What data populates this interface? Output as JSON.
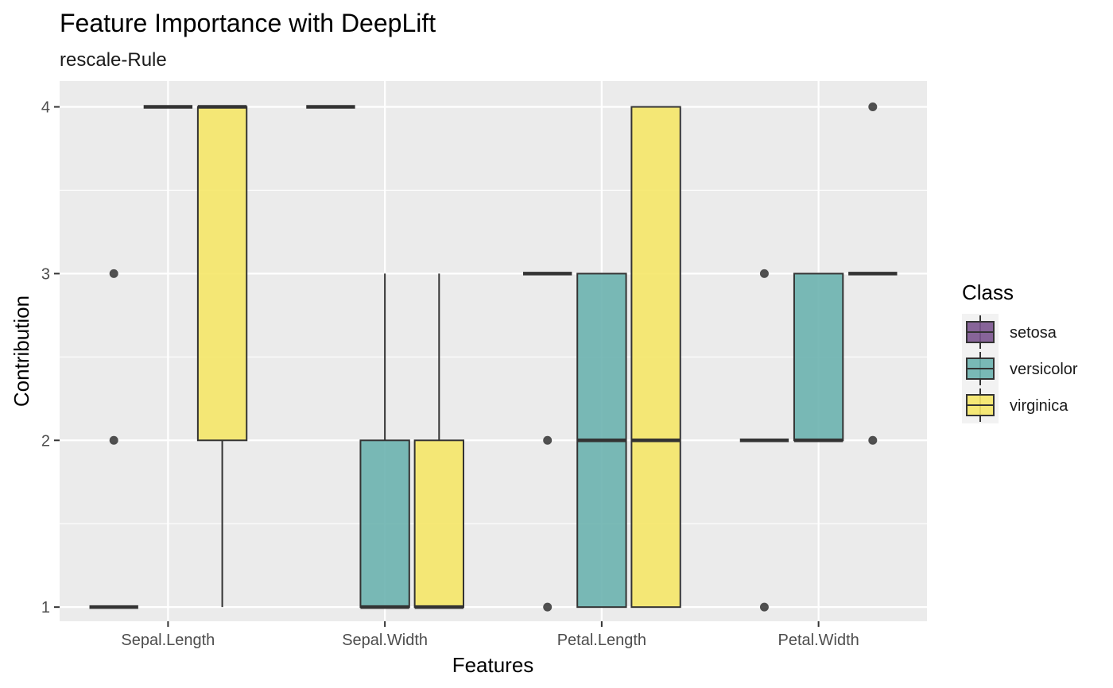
{
  "chart_data": {
    "type": "boxplot",
    "title": "Feature Importance with DeepLift",
    "subtitle": "rescale-Rule",
    "xlabel": "Features",
    "ylabel": "Contribution",
    "categories": [
      "Sepal.Length",
      "Sepal.Width",
      "Petal.Length",
      "Petal.Width"
    ],
    "ylim": [
      0.915,
      4.155
    ],
    "yticks": [
      1,
      2,
      3,
      4
    ],
    "grid": true,
    "legend": {
      "title": "Class",
      "position": "right",
      "items": [
        {
          "label": "setosa",
          "color": "#7b548f"
        },
        {
          "label": "versicolor",
          "color": "#6bb3af"
        },
        {
          "label": "virginica",
          "color": "#f5e768"
        }
      ]
    },
    "series": [
      {
        "name": "setosa",
        "color": "#7b548f",
        "boxes": [
          {
            "category": "Sepal.Length",
            "lower": 1,
            "q1": 1,
            "median": 1,
            "q3": 1,
            "upper": 1,
            "outliers": [
              2,
              3
            ]
          },
          {
            "category": "Sepal.Width",
            "lower": 4,
            "q1": 4,
            "median": 4,
            "q3": 4,
            "upper": 4,
            "outliers": []
          },
          {
            "category": "Petal.Length",
            "lower": 3,
            "q1": 3,
            "median": 3,
            "q3": 3,
            "upper": 3,
            "outliers": [
              1,
              2
            ]
          },
          {
            "category": "Petal.Width",
            "lower": 2,
            "q1": 2,
            "median": 2,
            "q3": 2,
            "upper": 2,
            "outliers": [
              1,
              3
            ]
          }
        ]
      },
      {
        "name": "versicolor",
        "color": "#6bb3af",
        "boxes": [
          {
            "category": "Sepal.Length",
            "lower": 4,
            "q1": 4,
            "median": 4,
            "q3": 4,
            "upper": 4,
            "outliers": []
          },
          {
            "category": "Sepal.Width",
            "lower": 1,
            "q1": 1,
            "median": 1,
            "q3": 2,
            "upper": 3,
            "outliers": []
          },
          {
            "category": "Petal.Length",
            "lower": 1,
            "q1": 1,
            "median": 2,
            "q3": 3,
            "upper": 3,
            "outliers": []
          },
          {
            "category": "Petal.Width",
            "lower": 2,
            "q1": 2,
            "median": 2,
            "q3": 3,
            "upper": 3,
            "outliers": []
          }
        ]
      },
      {
        "name": "virginica",
        "color": "#f5e768",
        "boxes": [
          {
            "category": "Sepal.Length",
            "lower": 1,
            "q1": 2,
            "median": 4,
            "q3": 4,
            "upper": 4,
            "outliers": []
          },
          {
            "category": "Sepal.Width",
            "lower": 1,
            "q1": 1,
            "median": 1,
            "q3": 2,
            "upper": 3,
            "outliers": []
          },
          {
            "category": "Petal.Length",
            "lower": 1,
            "q1": 1,
            "median": 2,
            "q3": 4,
            "upper": 4,
            "outliers": []
          },
          {
            "category": "Petal.Width",
            "lower": 3,
            "q1": 3,
            "median": 3,
            "q3": 3,
            "upper": 3,
            "outliers": [
              2,
              4
            ]
          }
        ]
      }
    ]
  }
}
